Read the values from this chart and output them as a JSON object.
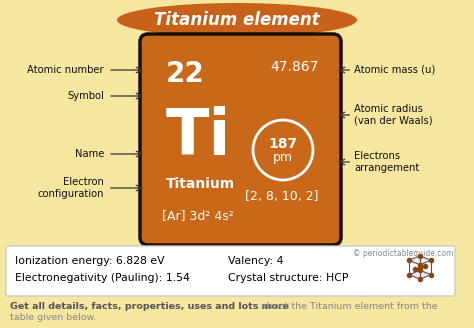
{
  "title": "Titanium element",
  "bg_color": "#f5e6a0",
  "title_bg_color": "#c8621a",
  "title_text_color": "#ffffff",
  "card_color": "#c86818",
  "card_border_color": "#1a0e04",
  "atomic_number": "22",
  "atomic_mass": "47.867",
  "symbol": "Ti",
  "name": "Titanium",
  "electron_config_bracket": "[2, 8, 10, 2]",
  "electron_config_noble": "[Ar] 3d² 4s²",
  "atomic_radius_line1": "187",
  "atomic_radius_line2": "pm",
  "left_labels": [
    "Atomic number",
    "Symbol",
    "Name",
    "Electron\nconfiguration"
  ],
  "right_labels": [
    "Atomic mass (u)",
    "Atomic radius\n(van der Waals)",
    "Electrons\narrangement"
  ],
  "ionization_energy": "Ionization energy: 6.828 eV",
  "electronegativity": "Electronegativity (Pauling): 1.54",
  "valency": "Valency: 4",
  "crystal_structure": "Crystal structure: HCP",
  "copyright": "© periodictableguide.com",
  "bottom_text_plain": "about the Titanium element from the\ntable given below.",
  "bottom_text_bold_part": "Get all details, facts, properties, uses and lots more"
}
